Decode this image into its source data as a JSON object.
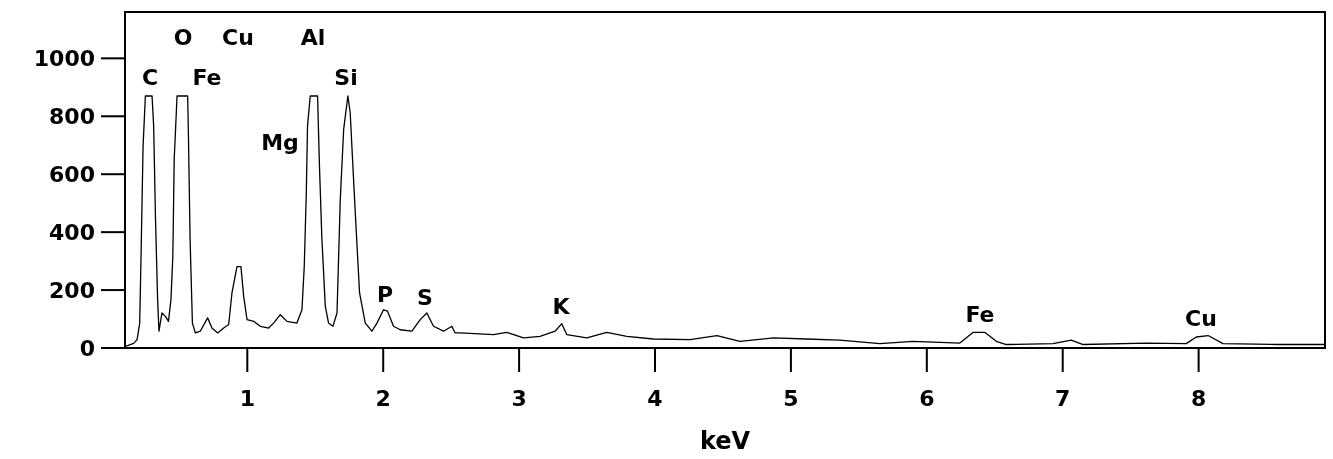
{
  "chart_data": {
    "type": "line",
    "xlabel": "keV",
    "xlim": [
      0.1,
      8.93
    ],
    "ylim": [
      0,
      1160
    ],
    "xticks": [
      1,
      2,
      3,
      4,
      5,
      6,
      7,
      8
    ],
    "yticks": [
      0,
      200,
      400,
      600,
      800,
      1000
    ],
    "grid": false,
    "marker": "none",
    "line_style": "solid",
    "series": [
      {
        "color": "#000000",
        "x": [
          0.103,
          0.164,
          0.189,
          0.208,
          0.218,
          0.233,
          0.25,
          0.299,
          0.311,
          0.324,
          0.34,
          0.35,
          0.372,
          0.396,
          0.42,
          0.438,
          0.452,
          0.462,
          0.483,
          0.561,
          0.566,
          0.579,
          0.596,
          0.618,
          0.654,
          0.708,
          0.74,
          0.782,
          0.826,
          0.863,
          0.887,
          0.924,
          0.953,
          0.973,
          0.998,
          1.047,
          1.096,
          1.157,
          1.193,
          1.243,
          1.292,
          1.365,
          1.402,
          1.419,
          1.434,
          1.443,
          1.463,
          1.517,
          1.531,
          1.549,
          1.574,
          1.598,
          1.63,
          1.66,
          1.684,
          1.709,
          1.74,
          1.757,
          1.777,
          1.801,
          1.826,
          1.868,
          1.917,
          1.954,
          2.002,
          2.032,
          2.076,
          2.125,
          2.211,
          2.272,
          2.321,
          2.37,
          2.444,
          2.505,
          2.529,
          2.566,
          2.811,
          2.909,
          3.032,
          3.154,
          3.265,
          3.314,
          3.351,
          3.498,
          3.645,
          3.792,
          3.988,
          4.257,
          4.456,
          4.625,
          4.87,
          5.115,
          5.36,
          5.654,
          5.9,
          6.243,
          6.342,
          6.426,
          6.511,
          6.585,
          6.929,
          7.063,
          7.15,
          7.615,
          7.909,
          7.983,
          8.07,
          8.179,
          8.596,
          8.93
        ],
        "values": [
          6,
          16,
          29,
          85,
          316,
          697,
          870,
          870,
          766,
          454,
          167,
          58,
          121,
          110,
          92,
          167,
          316,
          651,
          870,
          870,
          755,
          374,
          86,
          52,
          58,
          104,
          69,
          52,
          69,
          81,
          190,
          281,
          281,
          179,
          98,
          92,
          75,
          69,
          86,
          115,
          92,
          86,
          132,
          281,
          535,
          766,
          870,
          870,
          627,
          374,
          144,
          86,
          75,
          121,
          512,
          755,
          870,
          813,
          627,
          408,
          190,
          86,
          58,
          86,
          132,
          127,
          75,
          63,
          58,
          98,
          121,
          75,
          58,
          75,
          52,
          52,
          46,
          54,
          35,
          40,
          58,
          84,
          46,
          35,
          54,
          40,
          31,
          29,
          43,
          23,
          35,
          31,
          27,
          15,
          23,
          17,
          54,
          54,
          23,
          12,
          15,
          27,
          12,
          17,
          15,
          38,
          43,
          15,
          12,
          12
        ]
      }
    ],
    "annotations": [
      "C",
      "O",
      "Cu",
      "Fe",
      "Mg",
      "Al",
      "Si",
      "P",
      "S",
      "K",
      "Fe",
      "Cu"
    ]
  }
}
